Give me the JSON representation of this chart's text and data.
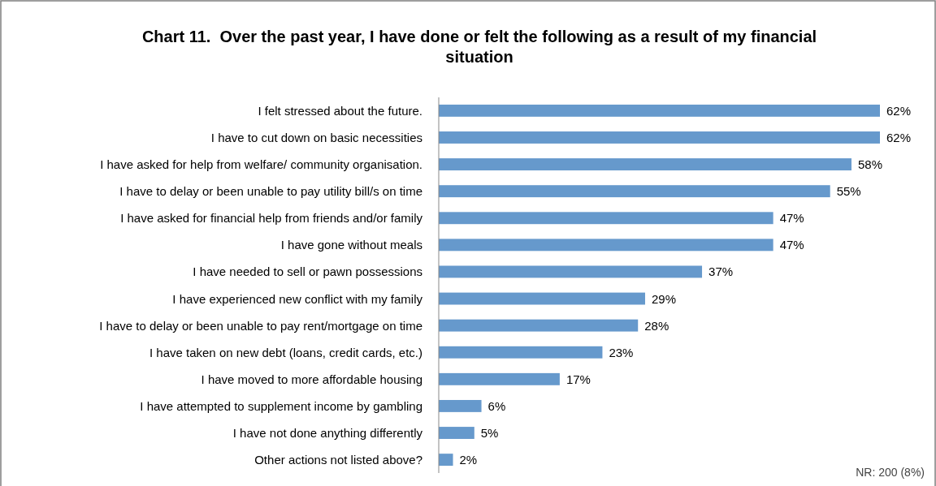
{
  "chart_data": {
    "type": "bar",
    "orientation": "horizontal",
    "title": "Chart 11.  Over the past year, I have done or felt the following as a result of my financial situation",
    "categories": [
      "I felt stressed about the future.",
      "I have to cut down on basic necessities",
      "I have asked for help from welfare/ community organisation.",
      "I have to delay or been unable to pay utility bill/s on time",
      "I have asked for financial help from friends and/or family",
      "I have gone without meals",
      "I have needed to sell or pawn possessions",
      "I have experienced new conflict with my family",
      "I have to delay or been unable to pay rent/mortgage on time",
      "I have taken on new debt (loans, credit cards, etc.)",
      "I have moved to more affordable housing",
      "I have attempted to supplement income by gambling",
      "I have not done anything differently",
      "Other actions not listed above?"
    ],
    "values": [
      62,
      62,
      58,
      55,
      47,
      47,
      37,
      29,
      28,
      23,
      17,
      6,
      5,
      2
    ],
    "value_labels": [
      "62%",
      "62%",
      "58%",
      "55%",
      "47%",
      "47%",
      "37%",
      "29%",
      "28%",
      "23%",
      "17%",
      "6%",
      "5%",
      "2%"
    ],
    "color": "#6699cc",
    "annotations": [
      "NR: 200 (8%)"
    ]
  }
}
